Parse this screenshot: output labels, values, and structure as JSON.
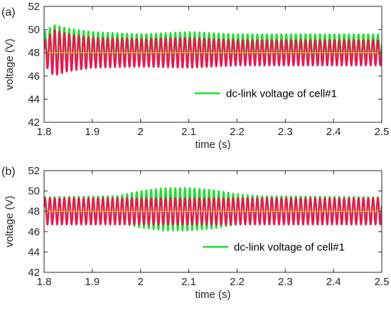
{
  "chart_data": [
    {
      "type": "line",
      "panel_label": "(a)",
      "xlabel": "time (s)",
      "ylabel": "voltage (V)",
      "xlim": [
        1.8,
        2.5
      ],
      "ylim": [
        42,
        52
      ],
      "xticks": [
        "1.8",
        "1.9",
        "2",
        "2.1",
        "2.2",
        "2.3",
        "2.4",
        "2.5"
      ],
      "yticks": [
        "42",
        "44",
        "46",
        "48",
        "50",
        "52"
      ],
      "grid": false,
      "legend": {
        "position": "right-middle",
        "entries": [
          "dc-link voltage of cell#1"
        ]
      },
      "oscillation_frequency_hz": 100,
      "series": [
        {
          "name": "dc-link voltage of cell#1",
          "color": "#22dd33",
          "mean_v": 48.5,
          "envelope_t": [
            1.8,
            1.82,
            1.85,
            1.9,
            2.0,
            2.1,
            2.2,
            2.5
          ],
          "envelope_amp": [
            1.3,
            1.9,
            1.6,
            1.3,
            1.1,
            1.3,
            1.1,
            1.1
          ]
        },
        {
          "color": "#e8194f",
          "mean_v": 48.0,
          "envelope_t": [
            1.8,
            1.82,
            1.85,
            1.9,
            2.0,
            2.1,
            2.2,
            2.5
          ],
          "envelope_amp": [
            1.0,
            2.0,
            1.6,
            1.3,
            1.2,
            1.3,
            1.1,
            1.1
          ]
        },
        {
          "color": "#f0c020",
          "mean_v": 48.0,
          "envelope_t": [
            1.8,
            2.5
          ],
          "envelope_amp": [
            0,
            0
          ]
        }
      ]
    },
    {
      "type": "line",
      "panel_label": "(b)",
      "xlabel": "time (s)",
      "ylabel": "voltage (V)",
      "xlim": [
        1.8,
        2.5
      ],
      "ylim": [
        42,
        52
      ],
      "xticks": [
        "1.8",
        "1.9",
        "2",
        "2.1",
        "2.2",
        "2.3",
        "2.4",
        "2.5"
      ],
      "yticks": [
        "42",
        "44",
        "46",
        "48",
        "50",
        "52"
      ],
      "grid": false,
      "legend": {
        "position": "right-middle",
        "entries": [
          "dc-link voltage of cell#1"
        ]
      },
      "oscillation_frequency_hz": 100,
      "series": [
        {
          "name": "dc-link voltage of cell#1",
          "color": "#22dd33",
          "mean_v": 48.2,
          "envelope_t": [
            1.8,
            1.95,
            2.0,
            2.05,
            2.1,
            2.15,
            2.2,
            2.25,
            2.5
          ],
          "envelope_amp": [
            1.2,
            1.3,
            1.8,
            2.1,
            2.1,
            1.9,
            1.5,
            1.3,
            1.2
          ]
        },
        {
          "color": "#e8194f",
          "mean_v": 48.0,
          "envelope_t": [
            1.8,
            2.5
          ],
          "envelope_amp": [
            1.3,
            1.3
          ]
        },
        {
          "color": "#f0c020",
          "mean_v": 48.0,
          "envelope_t": [
            1.8,
            2.5
          ],
          "envelope_amp": [
            0,
            0
          ]
        }
      ]
    }
  ]
}
